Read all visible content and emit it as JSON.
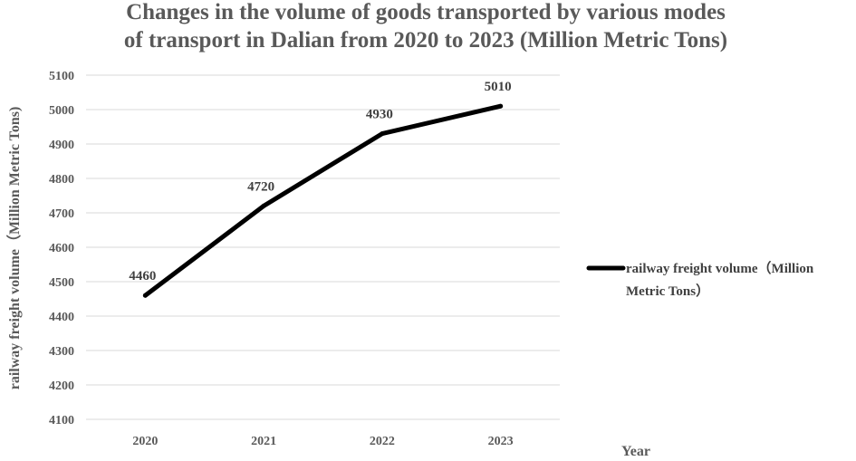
{
  "chart_data": {
    "type": "line",
    "title_lines": [
      "Changes in the volume of goods transported by various modes",
      "of transport in Dalian from 2020 to 2023 (Million Metric Tons)"
    ],
    "xlabel": "Year",
    "ylabel": "railway freight volume（Million Metric Tons)",
    "categories": [
      "2020",
      "2021",
      "2022",
      "2023"
    ],
    "series": [
      {
        "name": "railway freight volume（Million Metric Tons）",
        "legend_lines": [
          "railway freight volume（Million",
          "Metric Tons）"
        ],
        "values": [
          4460,
          4720,
          4930,
          5010
        ],
        "color": "#000000"
      }
    ],
    "ylim": [
      4100,
      5100
    ],
    "yticks": [
      "4100",
      "4200",
      "4300",
      "4400",
      "4500",
      "4600",
      "4700",
      "4800",
      "4900",
      "5000",
      "5100"
    ],
    "data_labels": [
      "4460",
      "4720",
      "4930",
      "5010"
    ],
    "grid": true,
    "legend_position": "right"
  }
}
